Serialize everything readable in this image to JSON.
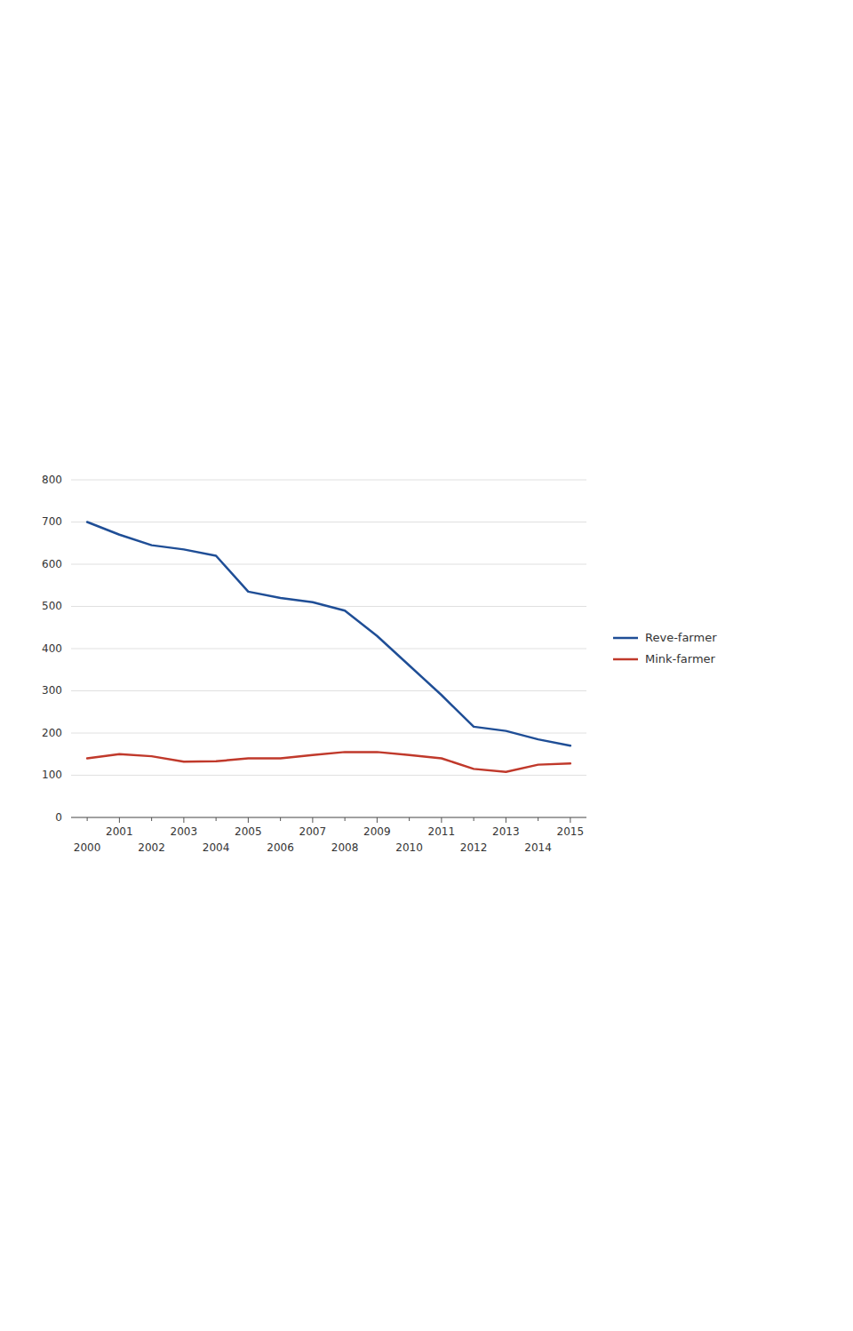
{
  "chart_data": {
    "type": "line",
    "x": [
      2000,
      2001,
      2002,
      2003,
      2004,
      2005,
      2006,
      2007,
      2008,
      2009,
      2010,
      2011,
      2012,
      2013,
      2014,
      2015
    ],
    "series": [
      {
        "name": "Reve-farmer",
        "color": "#1f4e96",
        "values": [
          700,
          670,
          645,
          635,
          620,
          535,
          520,
          510,
          490,
          430,
          360,
          290,
          215,
          205,
          185,
          170
        ]
      },
      {
        "name": "Mink-farmer",
        "color": "#c0392b",
        "values": [
          140,
          150,
          145,
          132,
          133,
          140,
          140,
          148,
          155,
          155,
          148,
          140,
          115,
          108,
          125,
          128
        ]
      }
    ],
    "xlim": [
      1999.5,
      2015.5
    ],
    "xticks": [
      2000,
      2001,
      2002,
      2003,
      2004,
      2005,
      2006,
      2007,
      2008,
      2009,
      2010,
      2011,
      2012,
      2013,
      2014,
      2015
    ],
    "ylim": [
      0,
      800
    ],
    "yticks": [
      0,
      100,
      200,
      300,
      400,
      500,
      600,
      700,
      800
    ],
    "grid": true,
    "legend": "right"
  }
}
